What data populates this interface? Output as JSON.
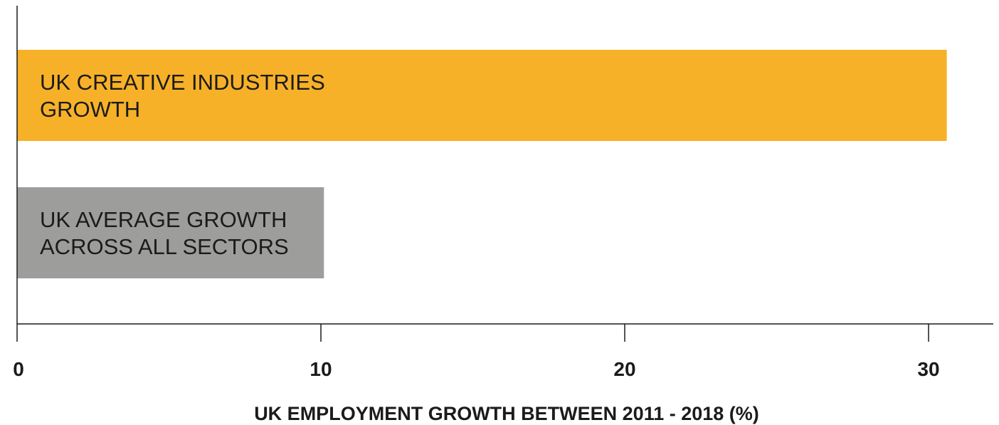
{
  "chart_data": {
    "type": "bar",
    "orientation": "horizontal",
    "categories": [
      [
        "UK CREATIVE INDUSTRIES",
        "GROWTH"
      ],
      [
        "UK AVERAGE GROWTH",
        "ACROSS ALL SECTORS"
      ]
    ],
    "values": [
      30.6,
      10.1
    ],
    "colors": [
      "#f7b128",
      "#9d9d9c"
    ],
    "xlabel": "UK EMPLOYMENT GROWTH BETWEEN  2011 - 2018 (%)",
    "xlim": [
      0,
      32
    ],
    "xticks": [
      0,
      10,
      20,
      30
    ],
    "xtick_labels": [
      "0",
      "10",
      "20",
      "30"
    ],
    "grid": false,
    "legend": "none"
  }
}
